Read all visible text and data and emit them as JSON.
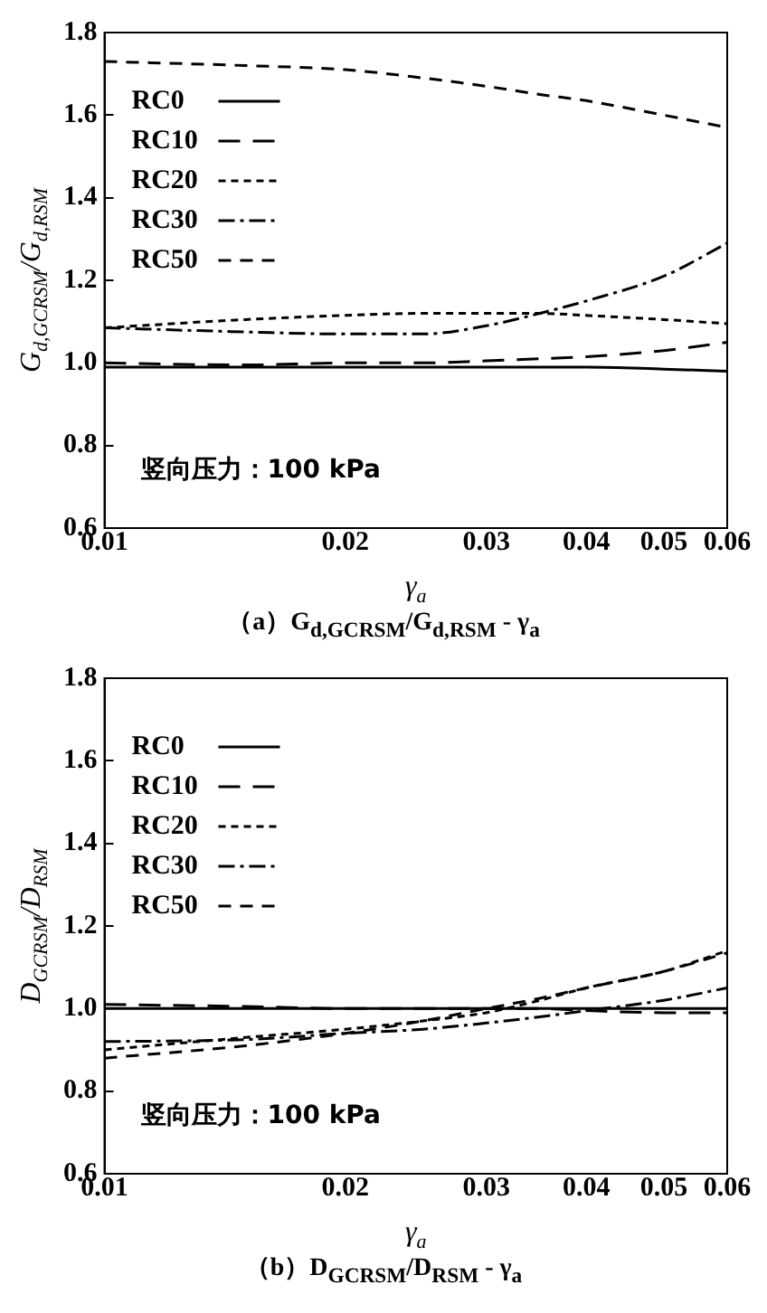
{
  "chart_data": [
    {
      "type": "line",
      "title": "（a）G$_{d,GCRSM}$/G$_{d,RSM}$ - γ$_{a}$",
      "xlabel": "γ$_{a}$",
      "ylabel": "G$_{d,GCRSM}$/G$_{d,RSM}$",
      "annotations": [
        "竖向压力：100 kPa"
      ],
      "log": "x",
      "grid": false,
      "legend": "top left",
      "marker": "none",
      "x": [
        0.01,
        0.015,
        0.02,
        0.025,
        0.03,
        0.035,
        0.04,
        0.05,
        0.06
      ],
      "xlim": [
        0.01,
        0.06
      ],
      "xticks": [
        0.01,
        0.02,
        0.03,
        0.04,
        0.05,
        0.06
      ],
      "ylim": [
        0.6,
        1.8
      ],
      "yticks": [
        0.6,
        0.8,
        {
          "value": 1,
          "label": "1.0"
        },
        1.2,
        1.4,
        1.6,
        1.8
      ],
      "series": [
        {
          "name": "RC0",
          "color": "#000000",
          "line_style": "solid",
          "values": [
            0.99,
            0.99,
            0.99,
            0.99,
            0.99,
            0.99,
            0.99,
            0.985,
            0.98
          ]
        },
        {
          "name": "RC10",
          "color": "#000000",
          "line_style": "longdash",
          "values": [
            1.0,
            0.995,
            1.0,
            1.0,
            1.005,
            1.01,
            1.015,
            1.03,
            1.05
          ]
        },
        {
          "name": "RC20",
          "color": "#000000",
          "line_style": "dotted",
          "values": [
            1.085,
            1.105,
            1.115,
            1.12,
            1.12,
            1.12,
            1.115,
            1.105,
            1.095
          ]
        },
        {
          "name": "RC30",
          "color": "#000000",
          "line_style": "dashdot",
          "values": [
            1.085,
            1.075,
            1.07,
            1.07,
            1.09,
            1.12,
            1.15,
            1.21,
            1.29
          ]
        },
        {
          "name": "RC50",
          "color": "#000000",
          "line_style": "dashed",
          "values": [
            1.73,
            1.72,
            1.71,
            1.69,
            1.67,
            1.65,
            1.635,
            1.6,
            1.57
          ]
        }
      ]
    },
    {
      "type": "line",
      "title": "（b）D$_{GCRSM}$/D$_{RSM}$ - γ$_{a}$",
      "xlabel": "γ$_{a}$",
      "ylabel": "D$_{GCRSM}$/D$_{RSM}$",
      "annotations": [
        "竖向压力：100 kPa"
      ],
      "log": "x",
      "grid": false,
      "legend": "top left",
      "marker": "none",
      "x": [
        0.01,
        0.015,
        0.02,
        0.025,
        0.03,
        0.035,
        0.04,
        0.05,
        0.06
      ],
      "xlim": [
        0.01,
        0.06
      ],
      "xticks": [
        0.01,
        0.02,
        0.03,
        0.04,
        0.05,
        0.06
      ],
      "ylim": [
        0.6,
        1.8
      ],
      "yticks": [
        0.6,
        0.8,
        {
          "value": 1,
          "label": "1.0"
        },
        1.2,
        1.4,
        1.6,
        1.8
      ],
      "series": [
        {
          "name": "RC0",
          "color": "#000000",
          "line_style": "solid",
          "values": [
            1.0,
            1.0,
            1.0,
            1.0,
            1.0,
            1.0,
            1.0,
            1.0,
            1.0
          ]
        },
        {
          "name": "RC10",
          "color": "#000000",
          "line_style": "longdash",
          "values": [
            1.01,
            1.005,
            1.0,
            1.0,
            1.0,
            1.0,
            0.995,
            0.99,
            0.99
          ]
        },
        {
          "name": "RC20",
          "color": "#000000",
          "line_style": "dotted",
          "values": [
            0.9,
            0.93,
            0.95,
            0.97,
            0.99,
            1.02,
            1.05,
            1.09,
            1.14
          ]
        },
        {
          "name": "RC30",
          "color": "#000000",
          "line_style": "dashdot",
          "values": [
            0.92,
            0.925,
            0.94,
            0.95,
            0.965,
            0.98,
            0.995,
            1.02,
            1.05
          ]
        },
        {
          "name": "RC50",
          "color": "#000000",
          "line_style": "dashed",
          "values": [
            0.88,
            0.91,
            0.94,
            0.97,
            1.0,
            1.025,
            1.05,
            1.09,
            1.135
          ]
        }
      ]
    }
  ]
}
